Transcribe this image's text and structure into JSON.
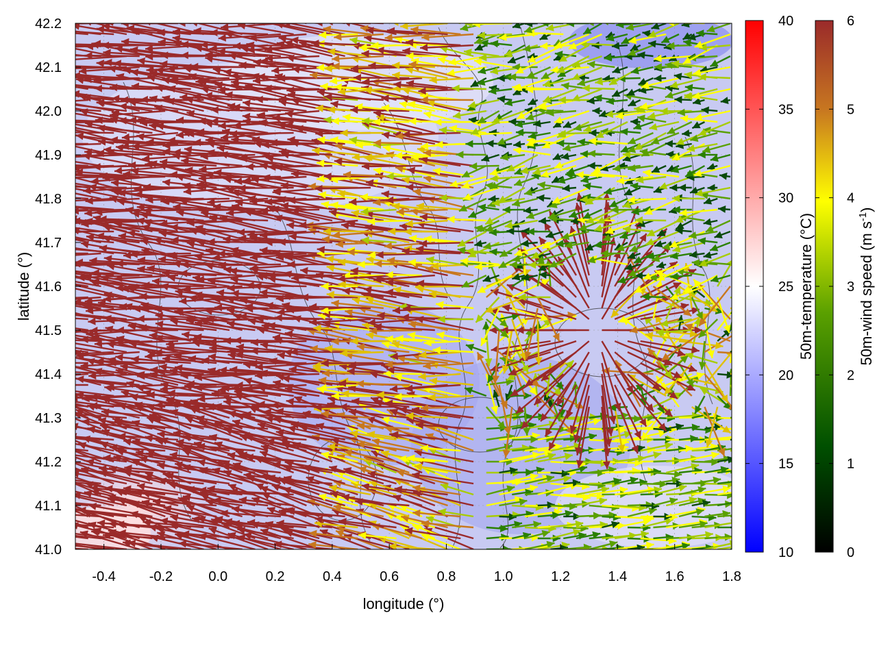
{
  "chart_data": {
    "type": "vector-field",
    "xlabel": "longitude (°)",
    "ylabel": "latitude (°)",
    "xlim": [
      -0.5,
      1.8
    ],
    "ylim": [
      41.0,
      42.2
    ],
    "x_ticks": [
      -0.4,
      -0.2,
      0.0,
      0.2,
      0.4,
      0.6,
      0.8,
      1.0,
      1.2,
      1.4,
      1.6,
      1.8
    ],
    "x_tick_labels": [
      "-0.4",
      "-0.2",
      "0.0",
      "0.2",
      "0.4",
      "0.6",
      "0.8",
      "1.0",
      "1.2",
      "1.4",
      "1.6",
      "1.8"
    ],
    "y_ticks": [
      41.0,
      41.1,
      41.2,
      41.3,
      41.4,
      41.5,
      41.6,
      41.7,
      41.8,
      41.9,
      42.0,
      42.1,
      42.2
    ],
    "y_tick_labels": [
      "41.0",
      "41.1",
      "41.2",
      "41.3",
      "41.4",
      "41.5",
      "41.6",
      "41.7",
      "41.8",
      "41.9",
      "42.0",
      "42.1",
      "42.2"
    ],
    "grid": true,
    "background_field": {
      "label": "50m-temperature (°C)",
      "range": [
        10,
        40
      ],
      "ticks": [
        10,
        15,
        20,
        25,
        30,
        35,
        40
      ],
      "tick_labels": [
        "10",
        "15",
        "20",
        "25",
        "30",
        "35",
        "40"
      ],
      "colors": [
        "#0000ff",
        "#ffffff",
        "#ff0000"
      ]
    },
    "vector_field": {
      "label_prefix": "50m-wind speed (m s",
      "label_sup": "-1",
      "label_suffix": ")",
      "range": [
        0,
        6
      ],
      "ticks": [
        0,
        1,
        2,
        3,
        4,
        5,
        6
      ],
      "tick_labels": [
        "0",
        "1",
        "2",
        "3",
        "4",
        "5",
        "6"
      ],
      "colors": [
        "#000000",
        "#005000",
        "#5aa000",
        "#ffff00",
        "#c87820",
        "#9a2a2a"
      ]
    },
    "regions_approx": [
      {
        "name": "west",
        "lon": [
          -0.5,
          0.9
        ],
        "speed": 6,
        "direction_deg": 175
      },
      {
        "name": "northeast",
        "lon": [
          0.9,
          1.8
        ],
        "lat": [
          41.6,
          42.2
        ],
        "speed": 1.5,
        "direction_deg": 200
      },
      {
        "name": "southeast",
        "lon": [
          0.9,
          1.8
        ],
        "lat": [
          41.0,
          41.3
        ],
        "speed": 2.5,
        "direction_deg": 0
      },
      {
        "name": "convergence",
        "lon": [
          1.3,
          1.4
        ],
        "lat": [
          41.45,
          41.55
        ],
        "speed": 6,
        "direction_deg": "radial"
      }
    ]
  }
}
